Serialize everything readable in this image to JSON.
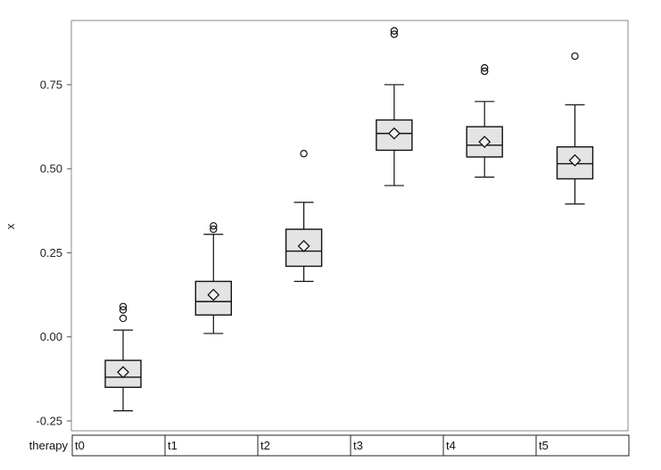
{
  "chart_data": {
    "type": "boxplot",
    "title": "",
    "xlabel": "therapy",
    "ylabel": "x",
    "ylim": [
      -0.25,
      0.85
    ],
    "yticks": [
      -0.25,
      0.0,
      0.25,
      0.5,
      0.75
    ],
    "ytick_labels": [
      "-0.25",
      "0.00",
      "0.25",
      "0.50",
      "0.75"
    ],
    "grid": false,
    "categories": [
      "t0",
      "t1",
      "t2",
      "t3",
      "t4",
      "t5"
    ],
    "boxes": [
      {
        "category": "t0",
        "whisker_low": -0.22,
        "q1": -0.15,
        "median": -0.12,
        "q3": -0.07,
        "whisker_high": 0.02,
        "mean": -0.105,
        "outliers": [
          0.055,
          0.08,
          0.09
        ]
      },
      {
        "category": "t1",
        "whisker_low": 0.01,
        "q1": 0.065,
        "median": 0.105,
        "q3": 0.165,
        "whisker_high": 0.305,
        "mean": 0.125,
        "outliers": [
          0.32,
          0.33
        ]
      },
      {
        "category": "t2",
        "whisker_low": 0.165,
        "q1": 0.21,
        "median": 0.255,
        "q3": 0.32,
        "whisker_high": 0.4,
        "mean": 0.27,
        "outliers": [
          0.545
        ]
      },
      {
        "category": "t3",
        "whisker_low": 0.45,
        "q1": 0.555,
        "median": 0.605,
        "q3": 0.645,
        "whisker_high": 0.75,
        "mean": 0.605,
        "outliers": [
          0.9,
          0.91
        ]
      },
      {
        "category": "t4",
        "whisker_low": 0.475,
        "q1": 0.535,
        "median": 0.57,
        "q3": 0.625,
        "whisker_high": 0.7,
        "mean": 0.58,
        "outliers": [
          0.79,
          0.8
        ]
      },
      {
        "category": "t5",
        "whisker_low": 0.395,
        "q1": 0.47,
        "median": 0.515,
        "q3": 0.565,
        "whisker_high": 0.69,
        "mean": 0.525,
        "outliers": [
          0.835
        ]
      }
    ]
  }
}
